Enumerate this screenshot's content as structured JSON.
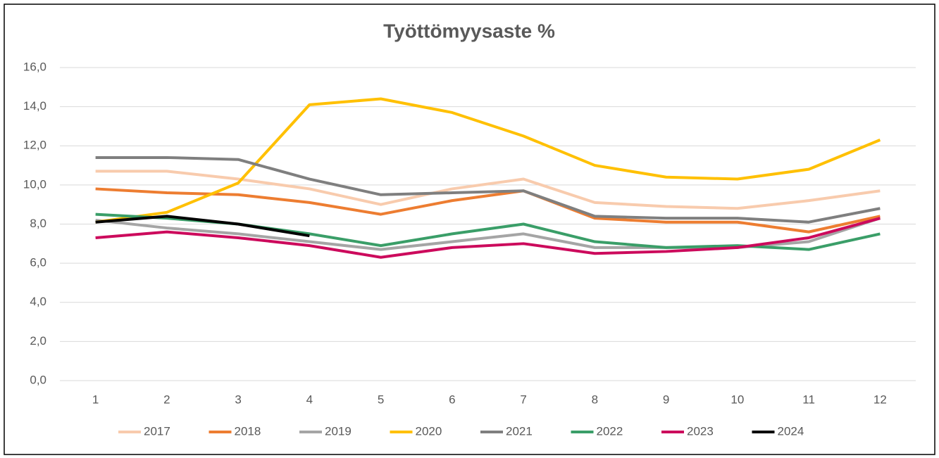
{
  "chart_data": {
    "type": "line",
    "title": "Työttömyysaste %",
    "categories": [
      "1",
      "2",
      "3",
      "4",
      "5",
      "6",
      "7",
      "8",
      "9",
      "10",
      "11",
      "12"
    ],
    "series": [
      {
        "name": "2017",
        "color": "#f8cbad",
        "values": [
          10.7,
          10.7,
          10.3,
          9.8,
          9.0,
          9.8,
          10.3,
          9.1,
          8.9,
          8.8,
          9.2,
          9.7
        ]
      },
      {
        "name": "2018",
        "color": "#ed7d31",
        "values": [
          9.8,
          9.6,
          9.5,
          9.1,
          8.5,
          9.2,
          9.7,
          8.3,
          8.1,
          8.1,
          7.6,
          8.4
        ]
      },
      {
        "name": "2019",
        "color": "#a5a5a5",
        "values": [
          8.2,
          7.8,
          7.5,
          7.1,
          6.7,
          7.1,
          7.5,
          6.8,
          6.8,
          6.8,
          7.1,
          8.3
        ]
      },
      {
        "name": "2020",
        "color": "#ffc000",
        "values": [
          8.1,
          8.6,
          10.1,
          14.1,
          14.4,
          13.7,
          12.5,
          11.0,
          10.4,
          10.3,
          10.8,
          12.3
        ]
      },
      {
        "name": "2021",
        "color": "#7f7f7f",
        "values": [
          11.4,
          11.4,
          11.3,
          10.3,
          9.5,
          9.6,
          9.7,
          8.4,
          8.3,
          8.3,
          8.1,
          8.8
        ]
      },
      {
        "name": "2022",
        "color": "#3a9e68",
        "values": [
          8.5,
          8.3,
          8.0,
          7.5,
          6.9,
          7.5,
          8.0,
          7.1,
          6.8,
          6.9,
          6.7,
          7.5
        ]
      },
      {
        "name": "2023",
        "color": "#cc0a5c",
        "values": [
          7.3,
          7.6,
          7.3,
          6.9,
          6.3,
          6.8,
          7.0,
          6.5,
          6.6,
          6.8,
          7.3,
          8.3
        ]
      },
      {
        "name": "2024",
        "color": "#000000",
        "values": [
          8.1,
          8.4,
          8.0,
          7.4,
          null,
          null,
          null,
          null,
          null,
          null,
          null,
          null
        ]
      }
    ],
    "ylim": [
      0,
      16
    ],
    "yticks": [
      {
        "value": 0,
        "label": "0,0"
      },
      {
        "value": 2,
        "label": "2,0"
      },
      {
        "value": 4,
        "label": "4,0"
      },
      {
        "value": 6,
        "label": "6,0"
      },
      {
        "value": 8,
        "label": "8,0"
      },
      {
        "value": 10,
        "label": "10,0"
      },
      {
        "value": 12,
        "label": "12,0"
      },
      {
        "value": 14,
        "label": "14,0"
      },
      {
        "value": 16,
        "label": "16,0"
      }
    ],
    "grid": true,
    "legend": "bottom"
  }
}
